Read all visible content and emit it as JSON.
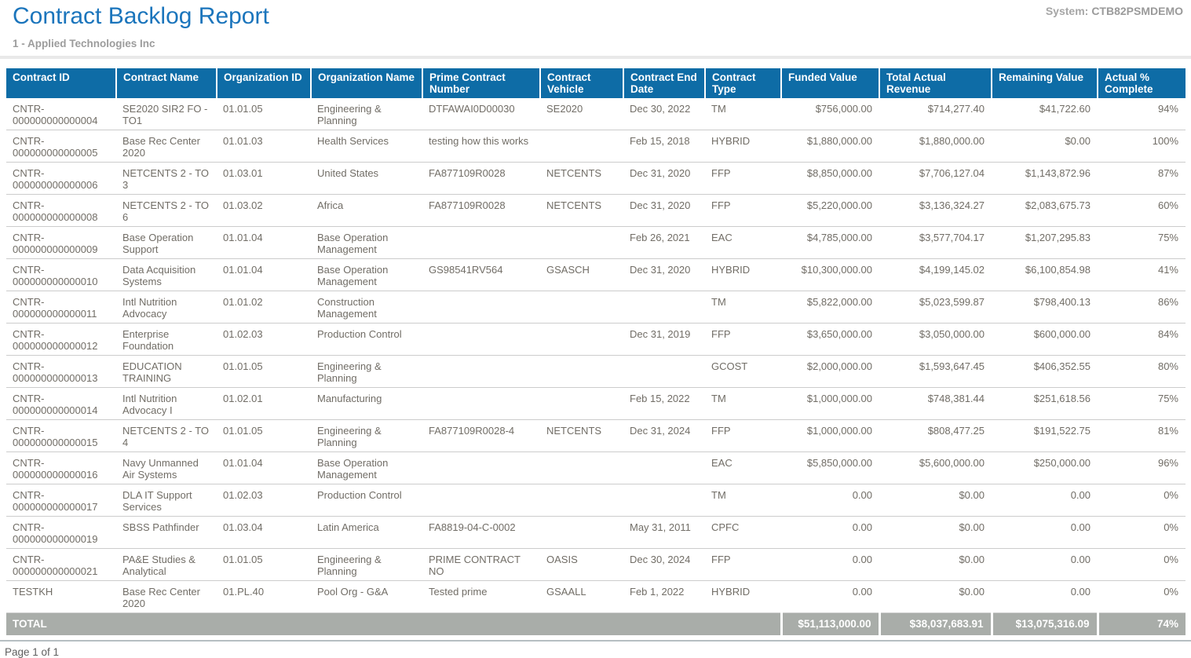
{
  "header": {
    "title": "Contract Backlog Report",
    "subtitle": "1 - Applied Technologies Inc",
    "system_label": "System:",
    "system_value": "CTB82PSMDEMO"
  },
  "table": {
    "columns": [
      {
        "key": "contract-id",
        "label": "Contract ID",
        "align": "left"
      },
      {
        "key": "contract-name",
        "label": "Contract Name",
        "align": "left"
      },
      {
        "key": "organization-id",
        "label": "Organization ID",
        "align": "left"
      },
      {
        "key": "organization-name",
        "label": "Organization Name",
        "align": "left"
      },
      {
        "key": "prime-contract-number",
        "label": "Prime Contract Number",
        "align": "left"
      },
      {
        "key": "contract-vehicle",
        "label": "Contract Vehicle",
        "align": "left"
      },
      {
        "key": "contract-end-date",
        "label": "Contract End Date",
        "align": "left"
      },
      {
        "key": "contract-type",
        "label": "Contract Type",
        "align": "left"
      },
      {
        "key": "funded-value",
        "label": "Funded Value",
        "align": "right"
      },
      {
        "key": "total-actual-revenue",
        "label": "Total Actual Revenue",
        "align": "right"
      },
      {
        "key": "remaining-value",
        "label": "Remaining Value",
        "align": "right"
      },
      {
        "key": "actual-pct-complete",
        "label": "Actual % Complete",
        "align": "right"
      }
    ],
    "rows": [
      [
        "CNTR-000000000000004",
        "SE2020 SIR2 FO - TO1",
        "01.01.05",
        "Engineering & Planning",
        "DTFAWAI0D00030",
        "SE2020",
        "Dec 30, 2022",
        "TM",
        "$756,000.00",
        "$714,277.40",
        "$41,722.60",
        "94%"
      ],
      [
        "CNTR-000000000000005",
        "Base Rec Center 2020",
        "01.01.03",
        "Health Services",
        "testing how this works",
        "",
        "Feb 15, 2018",
        "HYBRID",
        "$1,880,000.00",
        "$1,880,000.00",
        "$0.00",
        "100%"
      ],
      [
        "CNTR-000000000000006",
        "NETCENTS 2 - TO 3",
        "01.03.01",
        "United States",
        "FA877109R0028",
        "NETCENTS",
        "Dec 31, 2020",
        "FFP",
        "$8,850,000.00",
        "$7,706,127.04",
        "$1,143,872.96",
        "87%"
      ],
      [
        "CNTR-000000000000008",
        "NETCENTS 2 - TO 6",
        "01.03.02",
        "Africa",
        "FA877109R0028",
        "NETCENTS",
        "Dec 31, 2020",
        "FFP",
        "$5,220,000.00",
        "$3,136,324.27",
        "$2,083,675.73",
        "60%"
      ],
      [
        "CNTR-000000000000009",
        "Base Operation Support",
        "01.01.04",
        "Base Operation Management",
        "",
        "",
        "Feb 26, 2021",
        "EAC",
        "$4,785,000.00",
        "$3,577,704.17",
        "$1,207,295.83",
        "75%"
      ],
      [
        "CNTR-000000000000010",
        "Data Acquisition Systems",
        "01.01.04",
        "Base Operation Management",
        "GS98541RV564",
        "GSASCH",
        "Dec 31, 2020",
        "HYBRID",
        "$10,300,000.00",
        "$4,199,145.02",
        "$6,100,854.98",
        "41%"
      ],
      [
        "CNTR-000000000000011",
        "Intl Nutrition Advocacy",
        "01.01.02",
        "Construction Management",
        "",
        "",
        "",
        "TM",
        "$5,822,000.00",
        "$5,023,599.87",
        "$798,400.13",
        "86%"
      ],
      [
        "CNTR-000000000000012",
        "Enterprise Foundation",
        "01.02.03",
        "Production Control",
        "",
        "",
        "Dec 31, 2019",
        "FFP",
        "$3,650,000.00",
        "$3,050,000.00",
        "$600,000.00",
        "84%"
      ],
      [
        "CNTR-000000000000013",
        "EDUCATION TRAINING",
        "01.01.05",
        "Engineering & Planning",
        "",
        "",
        "",
        "GCOST",
        "$2,000,000.00",
        "$1,593,647.45",
        "$406,352.55",
        "80%"
      ],
      [
        "CNTR-000000000000014",
        "Intl Nutrition Advocacy I",
        "01.02.01",
        "Manufacturing",
        "",
        "",
        "Feb 15, 2022",
        "TM",
        "$1,000,000.00",
        "$748,381.44",
        "$251,618.56",
        "75%"
      ],
      [
        "CNTR-000000000000015",
        "NETCENTS 2 - TO 4",
        "01.01.05",
        "Engineering & Planning",
        "FA877109R0028-4",
        "NETCENTS",
        "Dec 31, 2024",
        "FFP",
        "$1,000,000.00",
        "$808,477.25",
        "$191,522.75",
        "81%"
      ],
      [
        "CNTR-000000000000016",
        "Navy Unmanned Air Systems",
        "01.01.04",
        "Base Operation Management",
        "",
        "",
        "",
        "EAC",
        "$5,850,000.00",
        "$5,600,000.00",
        "$250,000.00",
        "96%"
      ],
      [
        "CNTR-000000000000017",
        "DLA IT Support Services",
        "01.02.03",
        "Production Control",
        "",
        "",
        "",
        "TM",
        "0.00",
        "$0.00",
        "0.00",
        "0%"
      ],
      [
        "CNTR-000000000000019",
        "SBSS Pathfinder",
        "01.03.04",
        "Latin America",
        "FA8819-04-C-0002",
        "",
        "May 31, 2011",
        "CPFC",
        "0.00",
        "$0.00",
        "0.00",
        "0%"
      ],
      [
        "CNTR-000000000000021",
        "PA&E Studies & Analytical",
        "01.01.05",
        "Engineering & Planning",
        "PRIME CONTRACT NO",
        "OASIS",
        "Dec 30, 2024",
        "FFP",
        "0.00",
        "$0.00",
        "0.00",
        "0%"
      ],
      [
        "TESTKH",
        "Base Rec Center 2020",
        "01.PL.40",
        "Pool Org - G&A",
        "Tested prime",
        "GSAALL",
        "Feb 1, 2022",
        "HYBRID",
        "0.00",
        "$0.00",
        "0.00",
        "0%"
      ]
    ],
    "total": {
      "label": "TOTAL",
      "values": [
        "$51,113,000.00",
        "$38,037,683.91",
        "$13,075,316.09",
        "74%"
      ]
    }
  },
  "footer": {
    "page_text": "Page 1 of 1"
  },
  "colors": {
    "title_blue": "#1b75bc",
    "header_bg": "#0e6ca6",
    "total_bg": "#a9ada9",
    "body_text": "#716d66"
  }
}
